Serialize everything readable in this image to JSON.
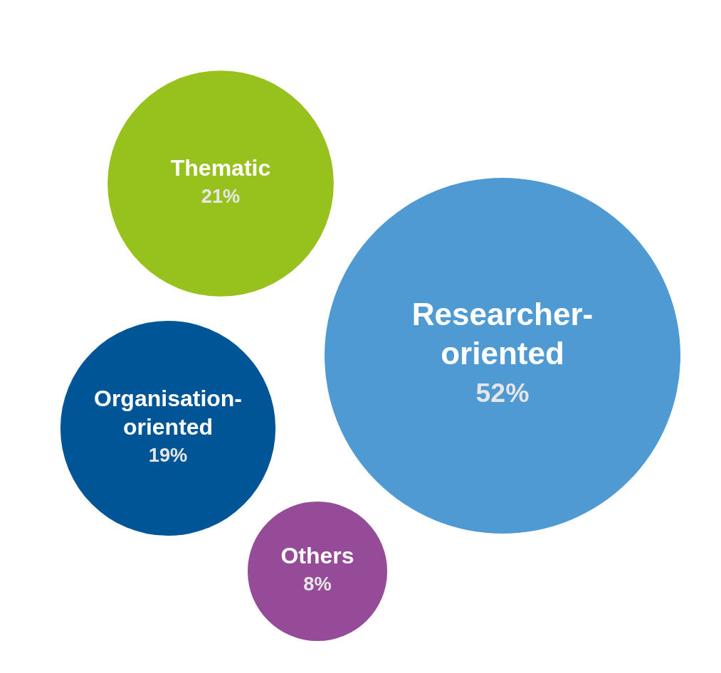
{
  "chart_data": {
    "type": "other",
    "categories": [
      "Thematic",
      "Researcher-oriented",
      "Organisation-oriented",
      "Others"
    ],
    "values": [
      21,
      52,
      19,
      8
    ],
    "colors": [
      "#97c21e",
      "#4f9ad2",
      "#005596",
      "#954b97"
    ],
    "value_labels": [
      "21%",
      "52%",
      "19%",
      "8%"
    ]
  }
}
